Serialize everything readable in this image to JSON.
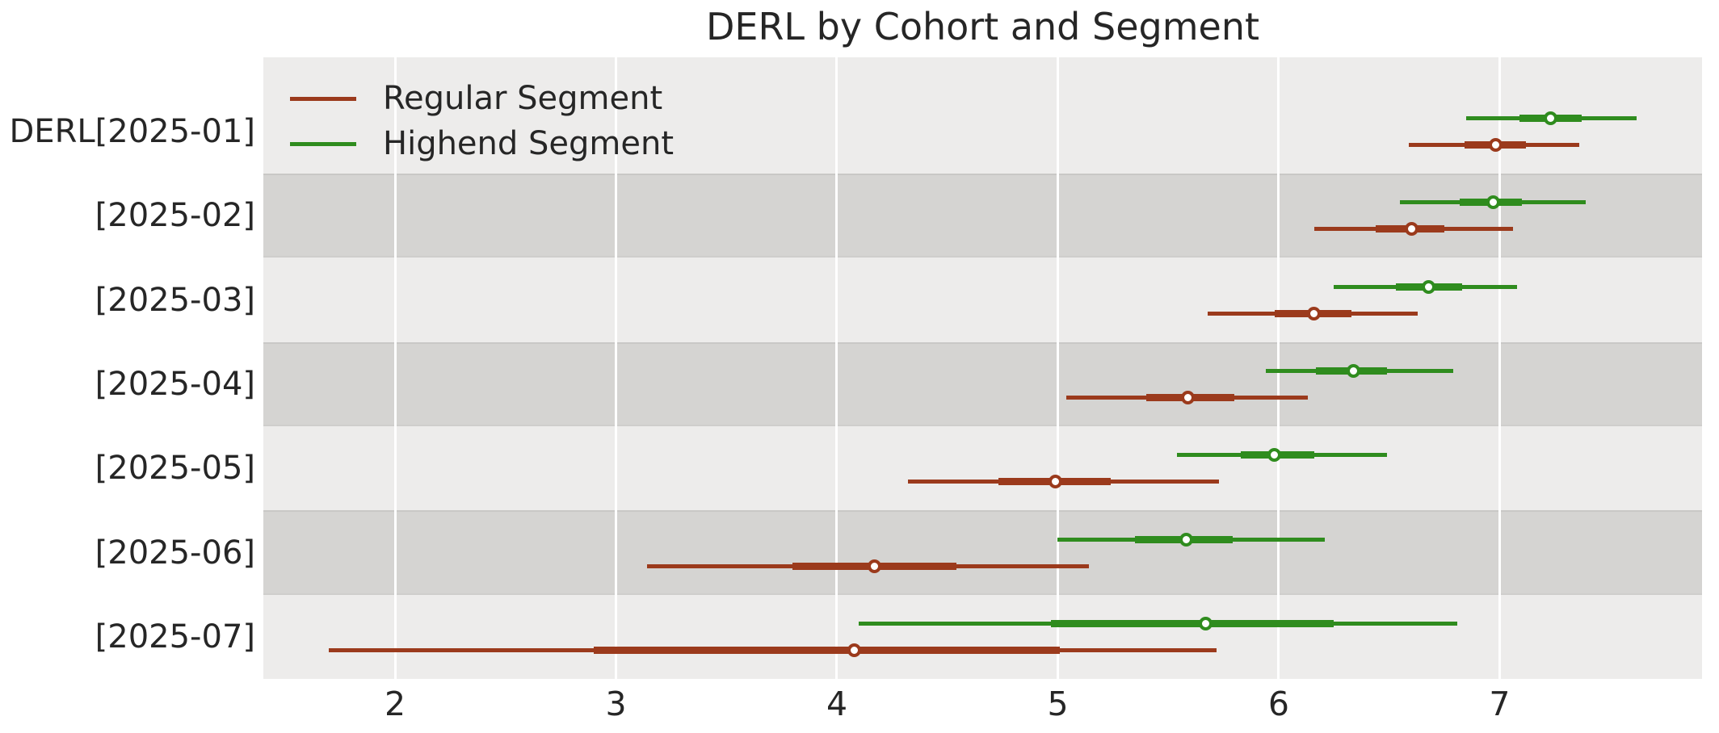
{
  "title": "DERL by Cohort and Segment",
  "colors": {
    "regular": "#9b3a1c",
    "highend": "#2f8c1e",
    "plot_background_light": "#edeceb",
    "plot_background_dark_band": "#d5d4d2",
    "gridline": "#ffffff",
    "text": "#262626",
    "marker_face": "#ffffff",
    "figure_background": "#ffffff"
  },
  "legend": {
    "entries": [
      {
        "label": "Regular Segment",
        "series_key": "regular"
      },
      {
        "label": "Highend Segment",
        "series_key": "highend"
      }
    ],
    "position": "upper left"
  },
  "chart_data": {
    "type": "scatter",
    "style": "horizontal interval (forest) plot: open-circle median marker, thick 50% interval bar, thin 95% interval whisker, two dodged series per category",
    "title": "DERL by Cohort and Segment",
    "xlabel": "",
    "ylabel": "",
    "categories": [
      "DERL[2025-01]",
      "[2025-02]",
      "[2025-03]",
      "[2025-04]",
      "[2025-05]",
      "[2025-06]",
      "[2025-07]"
    ],
    "xticks": [
      2,
      3,
      4,
      5,
      6,
      7
    ],
    "xlim": [
      1.4,
      7.92
    ],
    "grid": true,
    "background_bands": "rows alternate light/dark starting light for 2025-01",
    "series": [
      {
        "name": "Regular Segment",
        "color_key": "regular",
        "points": [
          {
            "category": "DERL[2025-01]",
            "center": 6.98,
            "box": [
              6.84,
              7.12
            ],
            "whisker": [
              6.59,
              7.36
            ]
          },
          {
            "category": "[2025-02]",
            "center": 6.6,
            "box": [
              6.44,
              6.75
            ],
            "whisker": [
              6.16,
              7.06
            ]
          },
          {
            "category": "[2025-03]",
            "center": 6.16,
            "box": [
              5.98,
              6.33
            ],
            "whisker": [
              5.68,
              6.63
            ]
          },
          {
            "category": "[2025-04]",
            "center": 5.59,
            "box": [
              5.4,
              5.8
            ],
            "whisker": [
              5.04,
              6.13
            ]
          },
          {
            "category": "[2025-05]",
            "center": 4.99,
            "box": [
              4.73,
              5.24
            ],
            "whisker": [
              4.32,
              5.73
            ]
          },
          {
            "category": "[2025-06]",
            "center": 4.17,
            "box": [
              3.8,
              4.54
            ],
            "whisker": [
              3.14,
              5.14
            ]
          },
          {
            "category": "[2025-07]",
            "center": 4.08,
            "box": [
              2.9,
              5.01
            ],
            "whisker": [
              1.7,
              5.72
            ]
          }
        ]
      },
      {
        "name": "Highend Segment",
        "color_key": "highend",
        "points": [
          {
            "category": "DERL[2025-01]",
            "center": 7.23,
            "box": [
              7.09,
              7.37
            ],
            "whisker": [
              6.85,
              7.62
            ]
          },
          {
            "category": "[2025-02]",
            "center": 6.97,
            "box": [
              6.82,
              7.1
            ],
            "whisker": [
              6.55,
              7.39
            ]
          },
          {
            "category": "[2025-03]",
            "center": 6.68,
            "box": [
              6.53,
              6.83
            ],
            "whisker": [
              6.25,
              7.08
            ]
          },
          {
            "category": "[2025-04]",
            "center": 6.34,
            "box": [
              6.17,
              6.49
            ],
            "whisker": [
              5.94,
              6.79
            ]
          },
          {
            "category": "[2025-05]",
            "center": 5.98,
            "box": [
              5.83,
              6.16
            ],
            "whisker": [
              5.54,
              6.49
            ]
          },
          {
            "category": "[2025-06]",
            "center": 5.58,
            "box": [
              5.35,
              5.79
            ],
            "whisker": [
              5.0,
              6.21
            ]
          },
          {
            "category": "[2025-07]",
            "center": 5.67,
            "box": [
              4.97,
              6.25
            ],
            "whisker": [
              4.1,
              6.81
            ]
          }
        ]
      }
    ]
  }
}
